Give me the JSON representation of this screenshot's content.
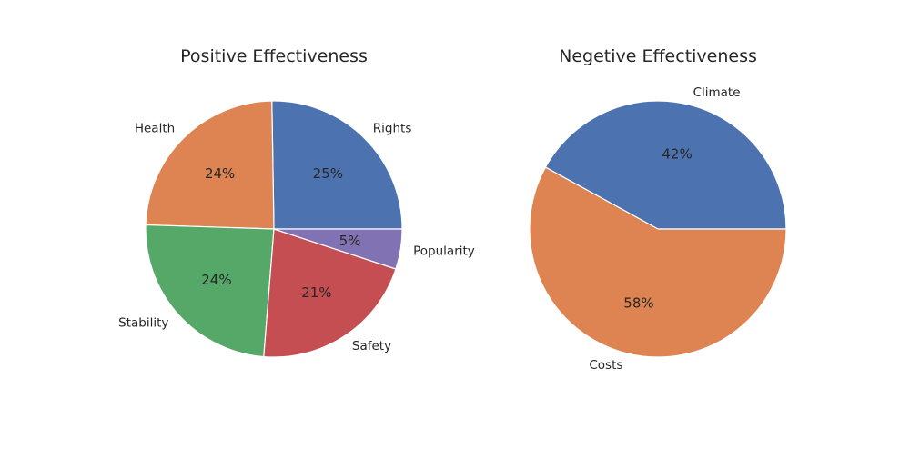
{
  "chart_data": [
    {
      "type": "pie",
      "title": "Positive Effectiveness",
      "labels": [
        "Rights",
        "Health",
        "Stability",
        "Safety",
        "Popularity"
      ],
      "values": [
        25,
        24,
        24,
        21,
        5
      ],
      "percent_labels": [
        "25%",
        "24%",
        "24%",
        "21%",
        "5%"
      ],
      "colors": [
        "#4c72b0",
        "#dd8452",
        "#55a868",
        "#c44e52",
        "#8172b3"
      ],
      "start_angle_deg": 0,
      "direction": "counterclockwise"
    },
    {
      "type": "pie",
      "title": "Negetive Effectiveness",
      "labels": [
        "Climate",
        "Costs"
      ],
      "values": [
        42,
        58
      ],
      "percent_labels": [
        "42%",
        "58%"
      ],
      "colors": [
        "#4c72b0",
        "#dd8452"
      ],
      "start_angle_deg": 0,
      "direction": "counterclockwise"
    }
  ]
}
